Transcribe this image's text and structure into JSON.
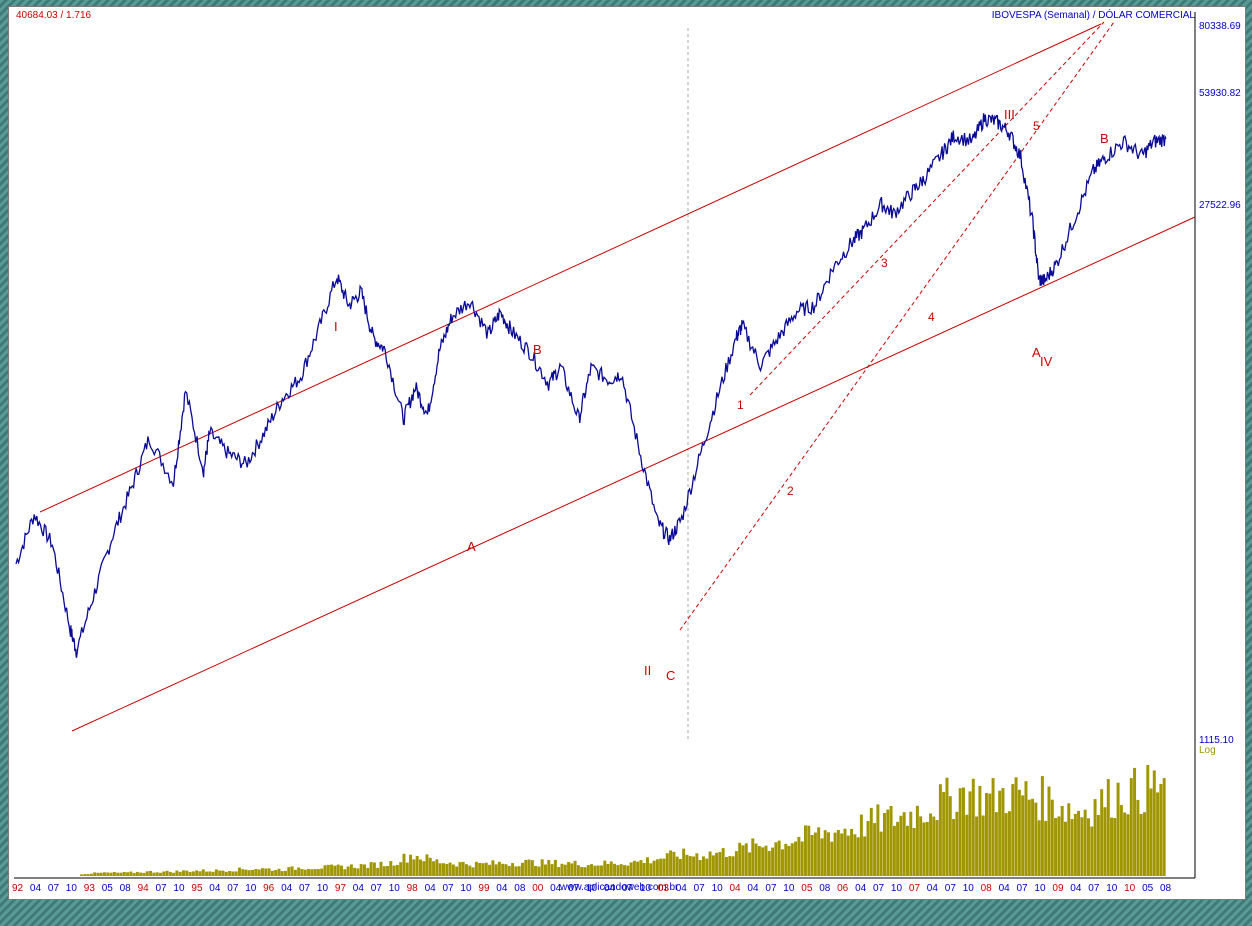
{
  "header": {
    "readout": "40684.03 / 1.716",
    "title": "IBOVESPA (Semanal) / DÓLAR COMERCIAL"
  },
  "scale_label": "Log",
  "watermark": "www.aplicandoweb.com.br",
  "colors": {
    "price": "#0a0a96",
    "trend": "#cc0000",
    "volume": "#a09600",
    "axis_text": "#0000cc",
    "year_text": "#cc0000"
  },
  "chart_data": {
    "type": "line",
    "title": "IBOVESPA (Semanal) / DÓLAR COMERCIAL",
    "yscale": "log",
    "ylim": [
      1115.1,
      80338.69
    ],
    "y_tick_labels": [
      "80338.69",
      "53930.82",
      "27522.96",
      "1115.10"
    ],
    "x_tick_labels": [
      "92",
      "04",
      "07",
      "10",
      "93",
      "05",
      "08",
      "94",
      "07",
      "10",
      "95",
      "04",
      "07",
      "10",
      "96",
      "04",
      "07",
      "10",
      "97",
      "04",
      "07",
      "10",
      "98",
      "04",
      "07",
      "10",
      "99",
      "04",
      "08",
      "00",
      "04",
      "07",
      "10",
      "04",
      "07",
      "10",
      "03",
      "04",
      "07",
      "10",
      "04",
      "04",
      "07",
      "10",
      "05",
      "08",
      "06",
      "04",
      "07",
      "10",
      "07",
      "04",
      "07",
      "10",
      "08",
      "04",
      "07",
      "10",
      "09",
      "04",
      "07",
      "10",
      "10",
      "05",
      "08"
    ],
    "series": [
      {
        "name": "IBOVESPA / DÓLAR",
        "x": [
          1992.0,
          1992.3,
          1992.6,
          1992.9,
          1993.0,
          1993.3,
          1993.6,
          1993.9,
          1994.2,
          1994.6,
          1994.8,
          1995.1,
          1995.2,
          1995.5,
          1995.8,
          1996.1,
          1996.4,
          1996.7,
          1997.0,
          1997.3,
          1997.5,
          1997.7,
          1997.9,
          1998.1,
          1998.4,
          1998.6,
          1998.8,
          1999.0,
          1999.2,
          1999.5,
          1999.8,
          2000.0,
          2000.2,
          2000.5,
          2000.8,
          2001.0,
          2001.3,
          2001.5,
          2001.8,
          2002.0,
          2002.3,
          2002.6,
          2002.8,
          2003.0,
          2003.3,
          2003.6,
          2003.9,
          2004.0,
          2004.3,
          2004.6,
          2004.9,
          2005.2,
          2005.5,
          2005.8,
          2006.0,
          2006.3,
          2006.5,
          2006.8,
          2007.0,
          2007.3,
          2007.5,
          2007.8,
          2008.0,
          2008.2,
          2008.4,
          2008.6,
          2008.8,
          2008.9,
          2009.0,
          2009.2,
          2009.5,
          2009.8,
          2010.0,
          2010.3,
          2010.6,
          2010.8,
          2011.0
        ],
        "values": [
          3200,
          4300,
          3600,
          2150,
          1900,
          2700,
          3800,
          5000,
          6800,
          5200,
          9000,
          5600,
          7000,
          6200,
          5800,
          7000,
          8600,
          9800,
          13000,
          17800,
          15000,
          16300,
          12400,
          11500,
          7600,
          9200,
          7800,
          11500,
          14000,
          15500,
          12600,
          14400,
          12800,
          11300,
          9400,
          10400,
          7600,
          10300,
          9600,
          10000,
          6300,
          4100,
          3700,
          4200,
          6100,
          8800,
          12400,
          13300,
          10500,
          12400,
          14500,
          15000,
          18800,
          21800,
          23500,
          27500,
          26000,
          29500,
          32000,
          37200,
          41500,
          40000,
          46000,
          45000,
          42500,
          36500,
          24500,
          17500,
          17400,
          19400,
          25500,
          33500,
          36500,
          40000,
          36700,
          40000,
          40700
        ]
      },
      {
        "name": "Volume",
        "values": [
          0.02,
          0.03,
          0.03,
          0.04,
          0.04,
          0.05,
          0.05,
          0.06,
          0.07,
          0.06,
          0.08,
          0.08,
          0.09,
          0.1,
          0.12,
          0.2,
          0.14,
          0.12,
          0.11,
          0.12,
          0.13,
          0.12,
          0.12,
          0.11,
          0.12,
          0.13,
          0.16,
          0.2,
          0.2,
          0.22,
          0.26,
          0.3,
          0.33,
          0.38,
          0.42,
          0.45,
          0.52,
          0.55,
          0.62,
          0.7,
          0.8,
          0.72,
          0.78,
          0.75,
          0.7,
          0.6,
          0.68,
          0.78,
          0.8,
          0.88
        ]
      }
    ],
    "annotations": [
      "I",
      "A",
      "B",
      "II",
      "C",
      "1",
      "2",
      "3",
      "4",
      "5",
      "III",
      "A",
      "IV",
      "B"
    ]
  }
}
